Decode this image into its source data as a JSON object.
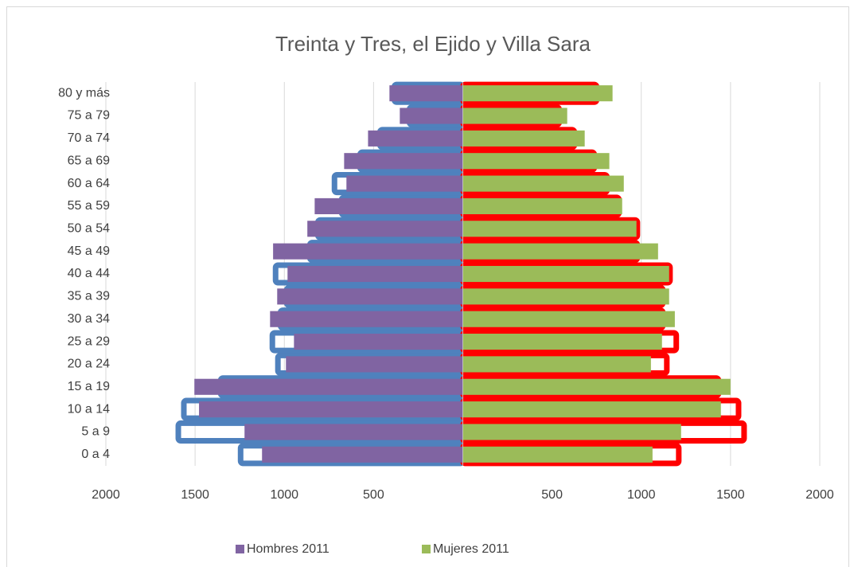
{
  "chart_data": {
    "type": "pyramid",
    "title": "Treinta y Tres, el Ejido y Villa Sara",
    "categories": [
      "0 a 4",
      "5 a 9",
      "10 a 14",
      "15 a 19",
      "20 a 24",
      "25 a 29",
      "30 a 34",
      "35 a 39",
      "40 a 44",
      "45 a 49",
      "50 a 54",
      "55 a 59",
      "60 a 64",
      "65 a 69",
      "70 a 74",
      "75 a 79",
      "80 y más"
    ],
    "series": [
      {
        "color": "#4f81bd",
        "style": "outline",
        "values": [
          -1245,
          -1594,
          -1563,
          -1357,
          -1036,
          -1067,
          -1022,
          -987,
          -1049,
          -857,
          -812,
          -679,
          -719,
          -576,
          -464,
          -299,
          -384
        ]
      },
      {
        "color": "#ff0000",
        "style": "outline",
        "values": [
          1210,
          1576,
          1545,
          1433,
          1143,
          1196,
          1121,
          1121,
          1161,
          978,
          978,
          875,
          808,
          737,
          625,
          540,
          750
        ]
      },
      {
        "name": "Hombres 2011",
        "color": "#8064a2",
        "style": "filled",
        "values": [
          -1125,
          -1223,
          -1478,
          -1504,
          -991,
          -946,
          -1080,
          -1040,
          -982,
          -1063,
          -871,
          -830,
          -652,
          -665,
          -531,
          -353,
          -411
        ]
      },
      {
        "name": "Mujeres 2011",
        "color": "#9bbb59",
        "style": "filled",
        "values": [
          1063,
          1223,
          1446,
          1500,
          1054,
          1116,
          1188,
          1156,
          1156,
          1094,
          973,
          893,
          902,
          821,
          683,
          585,
          839
        ]
      }
    ],
    "xlim": [
      -2000,
      2000
    ],
    "xticks": [
      {
        "value": -2000,
        "label": "2000"
      },
      {
        "value": -1500,
        "label": "1500"
      },
      {
        "value": -1000,
        "label": "1000"
      },
      {
        "value": -500,
        "label": "500"
      },
      500,
      1000,
      1500,
      2000
    ],
    "grid": true
  }
}
